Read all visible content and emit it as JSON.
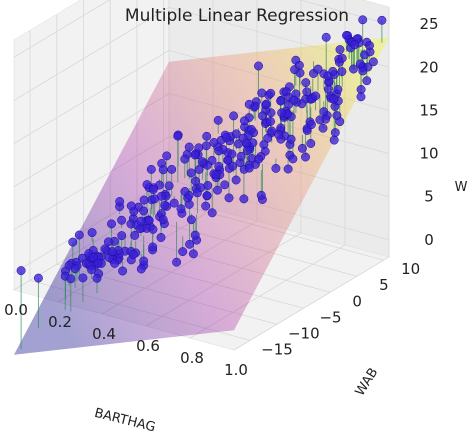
{
  "chart_data": {
    "type": "scatter",
    "subtype": "3d-scatter-with-regression-plane",
    "title": "Multiple Linear Regression",
    "xlabel": "BARTHAG",
    "ylabel": "WAB",
    "zlabel": "W",
    "xlim": [
      0.0,
      1.0
    ],
    "ylim": [
      -18,
      11
    ],
    "zlim": [
      -2,
      27
    ],
    "xticks": [
      "0.0",
      "0.2",
      "0.4",
      "0.6",
      "0.8",
      "1.0"
    ],
    "xtick_values": [
      0.0,
      0.2,
      0.4,
      0.6,
      0.8,
      1.0
    ],
    "yticks": [
      "−15",
      "−10",
      "−5",
      "0",
      "5",
      "10"
    ],
    "ytick_values": [
      -15,
      -10,
      -5,
      0,
      5,
      10
    ],
    "zticks": [
      "0",
      "5",
      "10",
      "15",
      "20",
      "25"
    ],
    "ztick_values": [
      0,
      5,
      10,
      15,
      20,
      25
    ],
    "plane": {
      "intercept": 4.9,
      "coef_x": 9.8,
      "coef_y": 0.8,
      "colormap": "plasma",
      "alpha": 0.4
    },
    "point_color": "#3a1fd6",
    "residual_color": "#2e8b57",
    "grid": true,
    "n_points": 320
  }
}
